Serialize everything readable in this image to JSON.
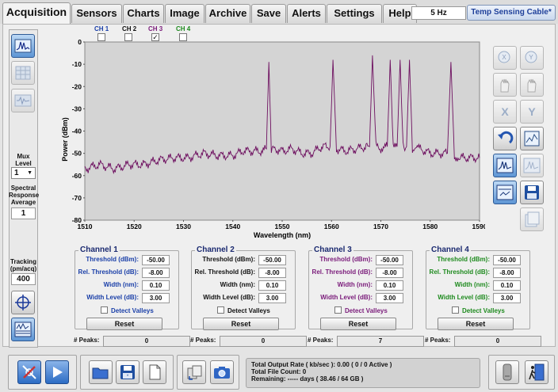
{
  "tabs": [
    {
      "label": "Acquisition",
      "active": true
    },
    {
      "label": "Sensors"
    },
    {
      "label": "Charts"
    },
    {
      "label": "Image"
    },
    {
      "label": "Archive"
    },
    {
      "label": "Save"
    },
    {
      "label": "Alerts"
    },
    {
      "label": "Settings"
    },
    {
      "label": "Help"
    }
  ],
  "rate": "5 Hz",
  "config_button": "Temp Sensing Cable*",
  "channels_header": [
    {
      "label": "CH 1",
      "checked": false,
      "color": "#1a3fa8"
    },
    {
      "label": "CH 2",
      "checked": false,
      "color": "#111111"
    },
    {
      "label": "CH 3",
      "checked": true,
      "color": "#7a1b7a"
    },
    {
      "label": "CH 4",
      "checked": false,
      "color": "#1e8a1e"
    }
  ],
  "sidebar": {
    "mux_label": "Mux Level",
    "mux_value": "1",
    "spectral_label": "Spectral Response Average",
    "spectral_value": "1",
    "tracking_label": "Tracking (pm/acq)",
    "tracking_value": "400"
  },
  "chart_data": {
    "type": "line",
    "xlabel": "Wavelength (nm)",
    "ylabel": "Power (dBm)",
    "xlim": [
      1510,
      1590
    ],
    "ylim": [
      -80,
      0
    ],
    "xticks": [
      1510,
      1520,
      1530,
      1540,
      1550,
      1560,
      1570,
      1580,
      1590
    ],
    "yticks": [
      0,
      -10,
      -20,
      -30,
      -40,
      -50,
      -60,
      -70,
      -80
    ],
    "series": [
      {
        "color": "#6e1060",
        "x": [
          1510,
          1513,
          1516,
          1519,
          1522,
          1525,
          1528,
          1531,
          1534,
          1537,
          1540,
          1542,
          1544,
          1546,
          1546.8,
          1547.3,
          1547.8,
          1548.5,
          1550,
          1552,
          1554,
          1556,
          1558,
          1559,
          1559.7,
          1560.3,
          1561,
          1563,
          1565,
          1567,
          1567.7,
          1568.3,
          1569,
          1570.5,
          1571.3,
          1571.9,
          1572.5,
          1573.3,
          1573.9,
          1574.5,
          1575.2,
          1575.8,
          1576.4,
          1578,
          1580,
          1582,
          1583.5,
          1584.2,
          1584.9,
          1586,
          1588,
          1590
        ],
        "y": [
          -57,
          -55,
          -57,
          -55,
          -55,
          -53,
          -52,
          -52,
          -50,
          -51,
          -51,
          -49,
          -49,
          -49,
          -48,
          -9,
          -48,
          -48,
          -49,
          -48,
          -50,
          -50,
          -47,
          -47,
          -47,
          -8,
          -48,
          -49,
          -48,
          -47,
          -47,
          -6,
          -47,
          -48,
          -47,
          -8,
          -48,
          -47,
          -8,
          -47,
          -47,
          -8,
          -48,
          -48,
          -50,
          -50,
          -50,
          -9,
          -51,
          -52,
          -52,
          -52
        ]
      }
    ]
  },
  "channel_panels": [
    {
      "title": "Channel 1",
      "color": "#1a3fa8",
      "threshold_lbl": "Threshold (dBm):",
      "threshold": "-50.00",
      "rel_lbl": "Rel. Threshold (dB):",
      "rel": "-8.00",
      "width_lbl": "Width (nm):",
      "width": "0.10",
      "level_lbl": "Width Level (dB):",
      "level": "3.00",
      "detect": "Detect Valleys",
      "reset": "Reset",
      "peaks_lbl": "# Peaks:",
      "peaks": "0"
    },
    {
      "title": "Channel 2",
      "color": "#111111",
      "threshold_lbl": "Threshold (dBm):",
      "threshold": "-50.00",
      "rel_lbl": "Rel. Threshold (dB):",
      "rel": "-8.00",
      "width_lbl": "Width (nm):",
      "width": "0.10",
      "level_lbl": "Width Level (dB):",
      "level": "3.00",
      "detect": "Detect Valleys",
      "reset": "Reset",
      "peaks_lbl": "# Peaks:",
      "peaks": "0"
    },
    {
      "title": "Channel 3",
      "color": "#7a1b7a",
      "threshold_lbl": "Threshold (dBm):",
      "threshold": "-50.00",
      "rel_lbl": "Rel. Threshold (dB):",
      "rel": "-8.00",
      "width_lbl": "Width (nm):",
      "width": "0.10",
      "level_lbl": "Width Level (dB):",
      "level": "3.00",
      "detect": "Detect Valleys",
      "reset": "Reset",
      "peaks_lbl": "# Peaks:",
      "peaks": "7"
    },
    {
      "title": "Channel 4",
      "color": "#1e8a1e",
      "threshold_lbl": "Threshold (dBm):",
      "threshold": "-50.00",
      "rel_lbl": "Rel. Threshold (dB):",
      "rel": "-8.00",
      "width_lbl": "Width (nm):",
      "width": "0.10",
      "level_lbl": "Width Level (dB):",
      "level": "3.00",
      "detect": "Detect Valleys",
      "reset": "Reset",
      "peaks_lbl": "# Peaks:",
      "peaks": "0"
    }
  ],
  "status": {
    "line1": "Total Output Rate ( kb/sec ): 0.00 ( 0 / 0 Active )",
    "line2": "Total File Count: 0",
    "line3": "Remaining: ----- days ( 38.46 / 64 GB )"
  }
}
